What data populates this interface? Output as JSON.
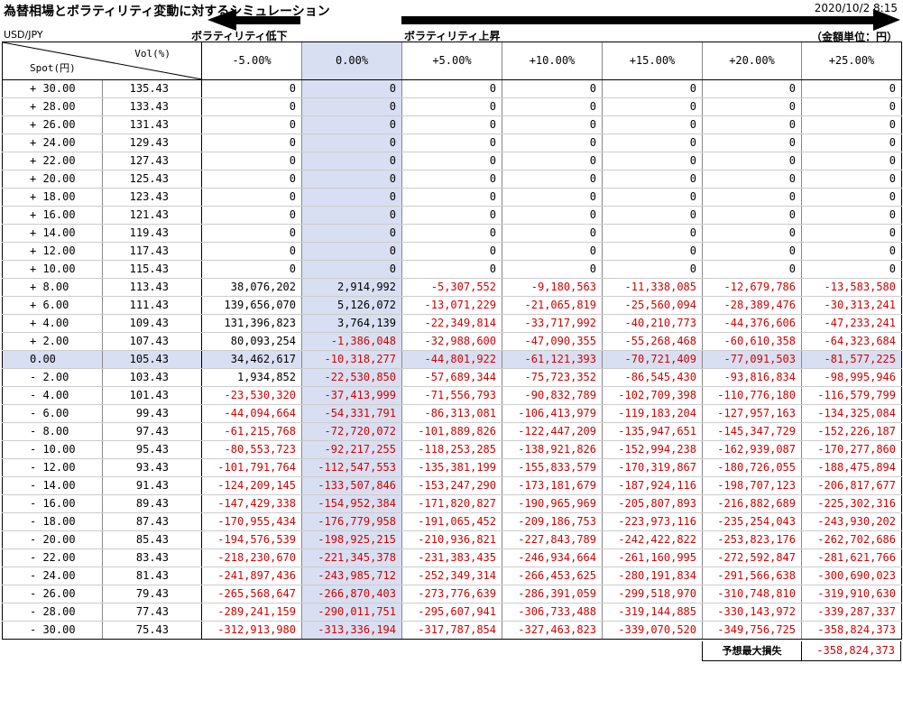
{
  "header": {
    "title": "為替相場とボラティリティ変動に対するシミュレーション",
    "timestamp": "2020/10/2  8:15",
    "pair": "USD/JPY",
    "vol_down": "ボラティリティ低下",
    "vol_up": "ボラティリティ上昇",
    "unit": "（金額単位：円）"
  },
  "table": {
    "corner": {
      "vol": "Vol(%)",
      "spot": "Spot(円)"
    },
    "columns": [
      "-5.00%",
      "0.00%",
      "+5.00%",
      "+10.00%",
      "+15.00%",
      "+20.00%",
      "+25.00%"
    ],
    "rows": [
      [
        "+ 30.00",
        "135.43",
        "0",
        "0",
        "0",
        "0",
        "0",
        "0",
        "0"
      ],
      [
        "+ 28.00",
        "133.43",
        "0",
        "0",
        "0",
        "0",
        "0",
        "0",
        "0"
      ],
      [
        "+ 26.00",
        "131.43",
        "0",
        "0",
        "0",
        "0",
        "0",
        "0",
        "0"
      ],
      [
        "+ 24.00",
        "129.43",
        "0",
        "0",
        "0",
        "0",
        "0",
        "0",
        "0"
      ],
      [
        "+ 22.00",
        "127.43",
        "0",
        "0",
        "0",
        "0",
        "0",
        "0",
        "0"
      ],
      [
        "+ 20.00",
        "125.43",
        "0",
        "0",
        "0",
        "0",
        "0",
        "0",
        "0"
      ],
      [
        "+ 18.00",
        "123.43",
        "0",
        "0",
        "0",
        "0",
        "0",
        "0",
        "0"
      ],
      [
        "+ 16.00",
        "121.43",
        "0",
        "0",
        "0",
        "0",
        "0",
        "0",
        "0"
      ],
      [
        "+ 14.00",
        "119.43",
        "0",
        "0",
        "0",
        "0",
        "0",
        "0",
        "0"
      ],
      [
        "+ 12.00",
        "117.43",
        "0",
        "0",
        "0",
        "0",
        "0",
        "0",
        "0"
      ],
      [
        "+ 10.00",
        "115.43",
        "0",
        "0",
        "0",
        "0",
        "0",
        "0",
        "0"
      ],
      [
        "+ 8.00",
        "113.43",
        "38,076,202",
        "2,914,992",
        "-5,307,552",
        "-9,180,563",
        "-11,338,085",
        "-12,679,786",
        "-13,583,580"
      ],
      [
        "+ 6.00",
        "111.43",
        "139,656,070",
        "5,126,072",
        "-13,071,229",
        "-21,065,819",
        "-25,560,094",
        "-28,389,476",
        "-30,313,241"
      ],
      [
        "+ 4.00",
        "109.43",
        "131,396,823",
        "3,764,139",
        "-22,349,814",
        "-33,717,992",
        "-40,210,773",
        "-44,376,606",
        "-47,233,241"
      ],
      [
        "+ 2.00",
        "107.43",
        "80,093,254",
        "-1,386,048",
        "-32,988,600",
        "-47,090,355",
        "-55,268,468",
        "-60,610,358",
        "-64,323,684"
      ],
      [
        "0.00",
        "105.43",
        "34,462,617",
        "-10,318,277",
        "-44,801,922",
        "-61,121,393",
        "-70,721,409",
        "-77,091,503",
        "-81,577,225"
      ],
      [
        "- 2.00",
        "103.43",
        "1,934,852",
        "-22,530,850",
        "-57,689,344",
        "-75,723,352",
        "-86,545,430",
        "-93,816,834",
        "-98,995,946"
      ],
      [
        "- 4.00",
        "101.43",
        "-23,530,320",
        "-37,413,999",
        "-71,556,793",
        "-90,832,789",
        "-102,709,398",
        "-110,776,180",
        "-116,579,799"
      ],
      [
        "- 6.00",
        "99.43",
        "-44,094,664",
        "-54,331,791",
        "-86,313,081",
        "-106,413,979",
        "-119,183,204",
        "-127,957,163",
        "-134,325,084"
      ],
      [
        "- 8.00",
        "97.43",
        "-61,215,768",
        "-72,720,072",
        "-101,889,826",
        "-122,447,209",
        "-135,947,651",
        "-145,347,729",
        "-152,226,187"
      ],
      [
        "- 10.00",
        "95.43",
        "-80,553,723",
        "-92,217,255",
        "-118,253,285",
        "-138,921,826",
        "-152,994,238",
        "-162,939,087",
        "-170,277,860"
      ],
      [
        "- 12.00",
        "93.43",
        "-101,791,764",
        "-112,547,553",
        "-135,381,199",
        "-155,833,579",
        "-170,319,867",
        "-180,726,055",
        "-188,475,894"
      ],
      [
        "- 14.00",
        "91.43",
        "-124,209,145",
        "-133,507,846",
        "-153,247,290",
        "-173,181,679",
        "-187,924,116",
        "-198,707,123",
        "-206,817,677"
      ],
      [
        "- 16.00",
        "89.43",
        "-147,429,338",
        "-154,952,384",
        "-171,820,827",
        "-190,965,969",
        "-205,807,893",
        "-216,882,689",
        "-225,302,316"
      ],
      [
        "- 18.00",
        "87.43",
        "-170,955,434",
        "-176,779,958",
        "-191,065,452",
        "-209,186,753",
        "-223,973,116",
        "-235,254,043",
        "-243,930,202"
      ],
      [
        "- 20.00",
        "85.43",
        "-194,576,539",
        "-198,925,215",
        "-210,936,821",
        "-227,843,789",
        "-242,422,822",
        "-253,823,176",
        "-262,702,686"
      ],
      [
        "- 22.00",
        "83.43",
        "-218,230,670",
        "-221,345,378",
        "-231,383,435",
        "-246,934,664",
        "-261,160,995",
        "-272,592,847",
        "-281,621,766"
      ],
      [
        "- 24.00",
        "81.43",
        "-241,897,436",
        "-243,985,712",
        "-252,349,314",
        "-266,453,625",
        "-280,191,834",
        "-291,566,638",
        "-300,690,023"
      ],
      [
        "- 26.00",
        "79.43",
        "-265,568,647",
        "-266,870,403",
        "-273,776,639",
        "-286,391,059",
        "-299,518,970",
        "-310,748,810",
        "-319,910,630"
      ],
      [
        "- 28.00",
        "77.43",
        "-289,241,159",
        "-290,011,751",
        "-295,607,941",
        "-306,733,488",
        "-319,144,885",
        "-330,143,972",
        "-339,287,337"
      ],
      [
        "- 30.00",
        "75.43",
        "-312,913,980",
        "-313,336,194",
        "-317,787,854",
        "-327,463,823",
        "-339,070,520",
        "-349,756,725",
        "-358,824,373"
      ]
    ]
  },
  "footer": {
    "label": "予想最大損失",
    "value": "-358,824,373"
  }
}
